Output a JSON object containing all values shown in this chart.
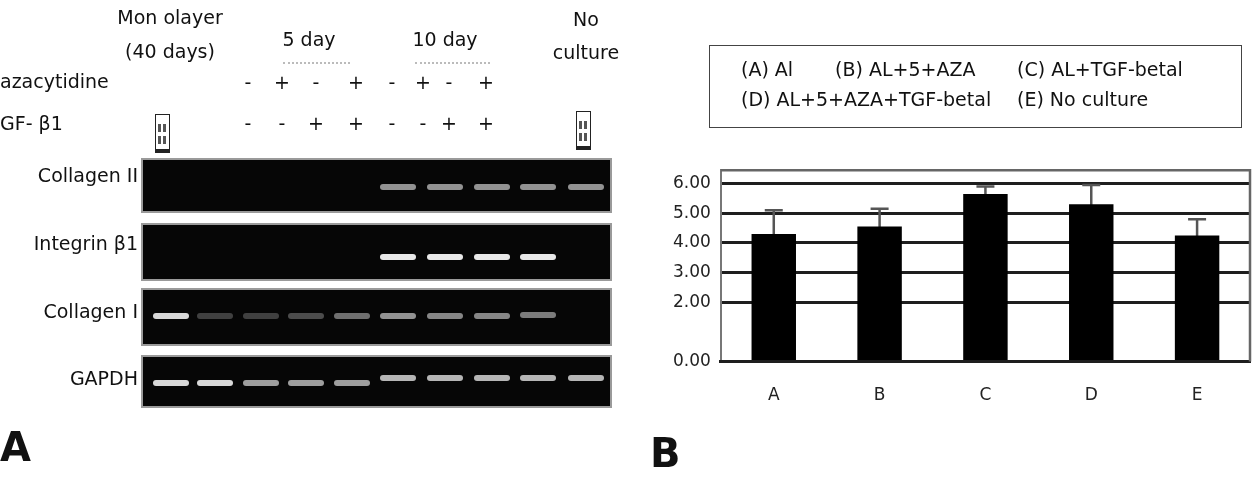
{
  "chart_data": [
    {
      "type": "other",
      "annotations": [
        "Mon olayer (40 days)",
        "5 day",
        "10 day",
        "No culture",
        "azacytidine",
        "-",
        "+",
        "-",
        "+",
        "-",
        "+",
        "-",
        "+",
        "GF- β1",
        "-",
        "-",
        "+",
        "+",
        "-",
        "-",
        "+",
        "+",
        "Collagen II",
        "Integrin β1",
        "Collagen I",
        "GAPDH",
        "A"
      ]
    },
    {
      "type": "bar",
      "categories": [
        "A",
        "B",
        "C",
        "D",
        "E"
      ],
      "values": [
        4.3,
        4.55,
        5.65,
        5.3,
        4.25
      ],
      "errors": [
        0.8,
        0.6,
        0.25,
        0.65,
        0.55
      ],
      "color": "#000000",
      "ylim": [
        0,
        6.45
      ],
      "yticks": [
        {
          "value": 0,
          "label": "0.00"
        },
        {
          "value": 2,
          "label": "2.00"
        },
        {
          "value": 3,
          "label": "3.00"
        },
        {
          "value": 4,
          "label": "4.00"
        },
        {
          "value": 5,
          "label": "5.00"
        },
        {
          "value": 6,
          "label": "6.00"
        }
      ],
      "grid": "y",
      "annotations": [
        "(A) Al",
        "(B) AL+5+AZA",
        "(C) AL+TGF-betal",
        "(D) AL+5+AZA+TGF-betal",
        "(E) No culture",
        "B"
      ]
    }
  ]
}
